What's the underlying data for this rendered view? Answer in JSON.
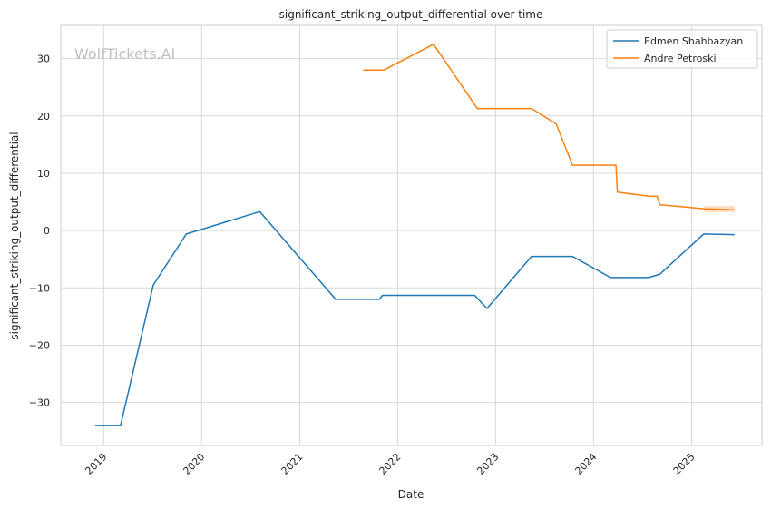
{
  "chart_data": {
    "type": "line",
    "title": "significant_striking_output_differential over time",
    "xlabel": "Date",
    "ylabel": "significant_striking_output_differential",
    "watermark": "WolfTickets.AI",
    "x_ticks": [
      "2019",
      "2020",
      "2021",
      "2022",
      "2023",
      "2024",
      "2025"
    ],
    "y_ticks": [
      30,
      20,
      10,
      0,
      -10,
      -20,
      -30
    ],
    "xlim": [
      "2018-07-25",
      "2025-09-20"
    ],
    "ylim": [
      -37.5,
      35.8
    ],
    "grid": true,
    "legend_position": "top-right",
    "series": [
      {
        "name": "Edmen Shahbazyan",
        "color": "#1f77b4",
        "points": [
          [
            "2018-11-30",
            -34.0
          ],
          [
            "2019-03-05",
            -34.0
          ],
          [
            "2019-07-05",
            -9.5
          ],
          [
            "2019-11-05",
            -0.6
          ],
          [
            "2020-08-05",
            3.3
          ],
          [
            "2021-05-15",
            -12.0
          ],
          [
            "2021-10-25",
            -12.0
          ],
          [
            "2021-11-05",
            -11.3
          ],
          [
            "2022-10-15",
            -11.3
          ],
          [
            "2022-11-30",
            -13.6
          ],
          [
            "2023-05-15",
            -4.5
          ],
          [
            "2023-10-15",
            -4.5
          ],
          [
            "2024-03-05",
            -8.2
          ],
          [
            "2024-07-25",
            -8.2
          ],
          [
            "2024-09-05",
            -7.6
          ],
          [
            "2025-02-15",
            -0.6
          ],
          [
            "2025-06-10",
            -0.7
          ]
        ]
      },
      {
        "name": "Andre Petroski",
        "color": "#ff7f0e",
        "points": [
          [
            "2021-08-25",
            28.0
          ],
          [
            "2021-11-10",
            28.0
          ],
          [
            "2022-05-15",
            32.5
          ],
          [
            "2022-10-25",
            21.3
          ],
          [
            "2023-05-15",
            21.3
          ],
          [
            "2023-08-15",
            18.6
          ],
          [
            "2023-10-15",
            11.4
          ],
          [
            "2024-03-25",
            11.4
          ],
          [
            "2024-03-30",
            6.7
          ],
          [
            "2024-07-25",
            6.0
          ],
          [
            "2024-08-25",
            6.0
          ],
          [
            "2024-09-05",
            4.5
          ],
          [
            "2025-02-15",
            3.8
          ],
          [
            "2025-06-10",
            3.6
          ]
        ],
        "band": {
          "x": [
            "2025-02-15",
            "2025-06-10"
          ],
          "upper": [
            4.3,
            4.3
          ],
          "lower": [
            3.2,
            3.2
          ]
        }
      }
    ]
  }
}
